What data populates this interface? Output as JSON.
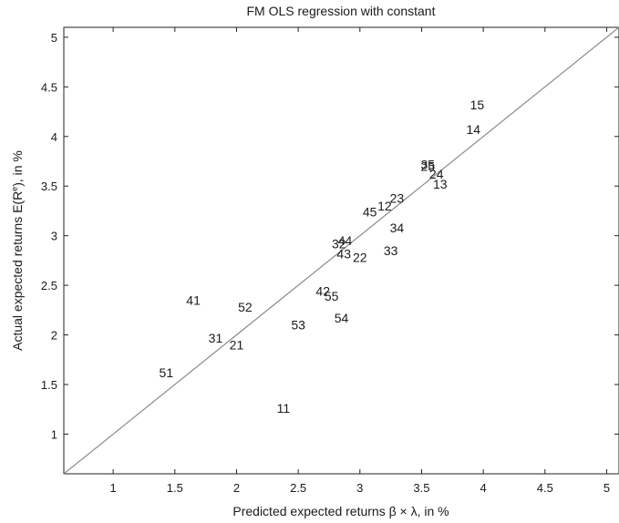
{
  "chart_data": {
    "type": "scatter",
    "title": "FM OLS regression with constant",
    "xlabel": "Predicted expected returns β × λ, in %",
    "ylabel_main": "Actual expected returns E(R",
    "ylabel_sup": "e",
    "ylabel_tail": "), in %",
    "xlim": [
      0.6,
      5.1
    ],
    "ylim": [
      0.6,
      5.1
    ],
    "xticks": [
      1,
      1.5,
      2,
      2.5,
      3,
      3.5,
      4,
      4.5,
      5
    ],
    "xtick_labels": [
      "1",
      "1.5",
      "2",
      "2.5",
      "3",
      "3.5",
      "4",
      "4.5",
      "5"
    ],
    "yticks": [
      1,
      1.5,
      2,
      2.5,
      3,
      3.5,
      4,
      4.5,
      5
    ],
    "ytick_labels": [
      "1",
      "1.5",
      "2",
      "2.5",
      "3",
      "3.5",
      "4",
      "4.5",
      "5"
    ],
    "grid": false,
    "reference_line": "45-degree line",
    "points": [
      {
        "label": "11",
        "x": 2.38,
        "y": 1.26
      },
      {
        "label": "12",
        "x": 3.2,
        "y": 3.3
      },
      {
        "label": "13",
        "x": 3.65,
        "y": 3.52
      },
      {
        "label": "14",
        "x": 3.92,
        "y": 4.07
      },
      {
        "label": "15",
        "x": 3.95,
        "y": 4.32
      },
      {
        "label": "21",
        "x": 2.0,
        "y": 1.9
      },
      {
        "label": "22",
        "x": 3.0,
        "y": 2.78
      },
      {
        "label": "23",
        "x": 3.3,
        "y": 3.38
      },
      {
        "label": "31",
        "x": 1.83,
        "y": 1.97
      },
      {
        "label": "32",
        "x": 2.83,
        "y": 2.92
      },
      {
        "label": "33",
        "x": 3.25,
        "y": 2.85
      },
      {
        "label": "34",
        "x": 3.3,
        "y": 3.08
      },
      {
        "label": "35",
        "x": 3.55,
        "y": 3.72
      },
      {
        "label": "41",
        "x": 1.65,
        "y": 2.35
      },
      {
        "label": "42",
        "x": 2.7,
        "y": 2.44
      },
      {
        "label": "43",
        "x": 2.87,
        "y": 2.82
      },
      {
        "label": "44",
        "x": 2.88,
        "y": 2.95
      },
      {
        "label": "45",
        "x": 3.08,
        "y": 3.24
      },
      {
        "label": "51",
        "x": 1.43,
        "y": 1.62
      },
      {
        "label": "52",
        "x": 2.07,
        "y": 2.28
      },
      {
        "label": "53",
        "x": 2.5,
        "y": 2.1
      },
      {
        "label": "54",
        "x": 2.85,
        "y": 2.17
      },
      {
        "label": "55",
        "x": 2.77,
        "y": 2.39
      },
      {
        "label": "25",
        "x": 3.55,
        "y": 3.7
      },
      {
        "label": "24",
        "x": 3.62,
        "y": 3.62
      }
    ]
  }
}
